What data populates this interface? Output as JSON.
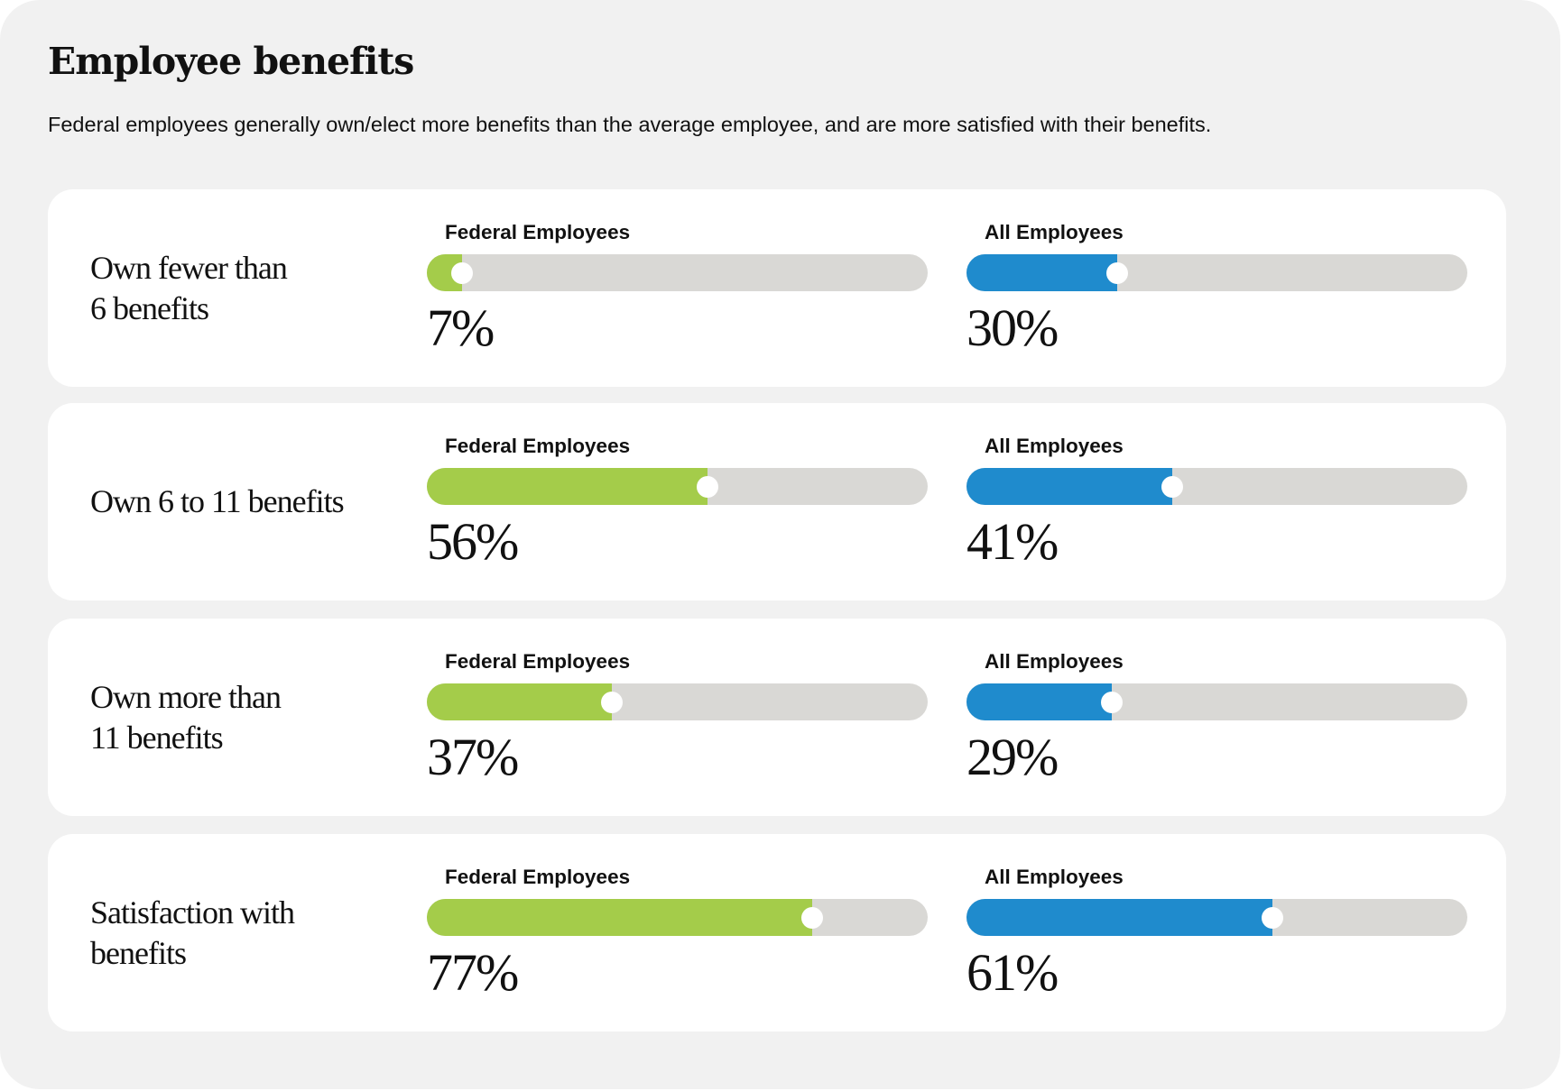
{
  "title": "Employee benefits",
  "subtitle": "Federal employees generally own/elect more benefits than the average employee, and are more satisfied with their benefits.",
  "colors": {
    "federal": "#a4cc4a",
    "all": "#1f8bcd",
    "track": "#d9d8d5"
  },
  "chart_data": {
    "type": "bar",
    "title": "Employee benefits",
    "subtitle": "Federal employees generally own/elect more benefits than the average employee, and are more satisfied with their benefits.",
    "categories": [
      "Own fewer than 6 benefits",
      "Own 6 to 11 benefits",
      "Own more than 11 benefits",
      "Satisfaction with benefits"
    ],
    "series": [
      {
        "name": "Federal Employees",
        "values": [
          7,
          56,
          37,
          77
        ],
        "color": "#a4cc4a"
      },
      {
        "name": "All Employees",
        "values": [
          30,
          41,
          29,
          61
        ],
        "color": "#1f8bcd"
      }
    ],
    "unit": "%",
    "xlim": [
      0,
      100
    ]
  },
  "rows": [
    {
      "label_lines": [
        "Own fewer than",
        "6 benefits"
      ],
      "federal": {
        "label": "Federal Employees",
        "value": 7,
        "display": "7%"
      },
      "all": {
        "label": "All Employees",
        "value": 30,
        "display": "30%"
      }
    },
    {
      "label_lines": [
        "Own 6 to 11 benefits"
      ],
      "federal": {
        "label": "Federal Employees",
        "value": 56,
        "display": "56%"
      },
      "all": {
        "label": "All Employees",
        "value": 41,
        "display": "41%"
      }
    },
    {
      "label_lines": [
        "Own more than",
        "11 benefits"
      ],
      "federal": {
        "label": "Federal Employees",
        "value": 37,
        "display": "37%"
      },
      "all": {
        "label": "All Employees",
        "value": 29,
        "display": "29%"
      }
    },
    {
      "label_lines": [
        "Satisfaction with",
        "benefits"
      ],
      "federal": {
        "label": "Federal Employees",
        "value": 77,
        "display": "77%"
      },
      "all": {
        "label": "All Employees",
        "value": 61,
        "display": "61%"
      }
    }
  ]
}
